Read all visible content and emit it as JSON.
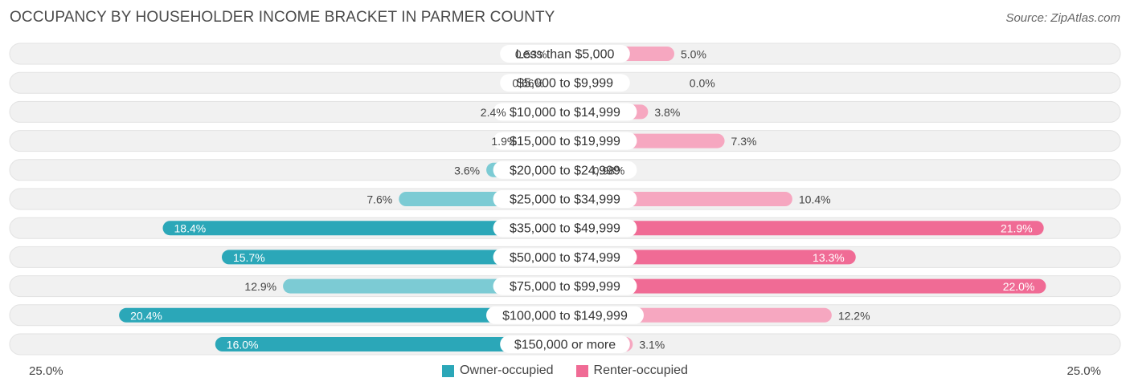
{
  "title": "OCCUPANCY BY HOUSEHOLDER INCOME BRACKET IN PARMER COUNTY",
  "source": "Source: ZipAtlas.com",
  "colors": {
    "owner": "#2ba7b8",
    "owner_light": "#7ccbd4",
    "renter": "#f06b95",
    "renter_light": "#f6a7c0",
    "row_bg": "#f1f1f1"
  },
  "chart_data": {
    "type": "bar",
    "orientation": "horizontal-diverging",
    "categories": [
      "Less than $5,000",
      "$5,000 to $9,999",
      "$10,000 to $14,999",
      "$15,000 to $19,999",
      "$20,000 to $24,999",
      "$25,000 to $34,999",
      "$35,000 to $49,999",
      "$50,000 to $74,999",
      "$75,000 to $99,999",
      "$100,000 to $149,999",
      "$150,000 or more"
    ],
    "series": [
      {
        "name": "Owner-occupied",
        "values": [
          0.53,
          0.66,
          2.4,
          1.9,
          3.6,
          7.6,
          18.4,
          15.7,
          12.9,
          20.4,
          16.0
        ],
        "labels": [
          "0.53%",
          "0.66%",
          "2.4%",
          "1.9%",
          "3.6%",
          "7.6%",
          "18.4%",
          "15.7%",
          "12.9%",
          "20.4%",
          "16.0%"
        ]
      },
      {
        "name": "Renter-occupied",
        "values": [
          5.0,
          0.0,
          3.8,
          7.3,
          0.98,
          10.4,
          21.9,
          13.3,
          22.0,
          12.2,
          3.1
        ],
        "labels": [
          "5.0%",
          "0.0%",
          "3.8%",
          "7.3%",
          "0.98%",
          "10.4%",
          "21.9%",
          "13.3%",
          "22.0%",
          "12.2%",
          "3.1%"
        ]
      }
    ],
    "xlim": [
      -25,
      25
    ],
    "axis_left_label": "25.0%",
    "axis_right_label": "25.0%",
    "legend_position": "bottom-center"
  }
}
